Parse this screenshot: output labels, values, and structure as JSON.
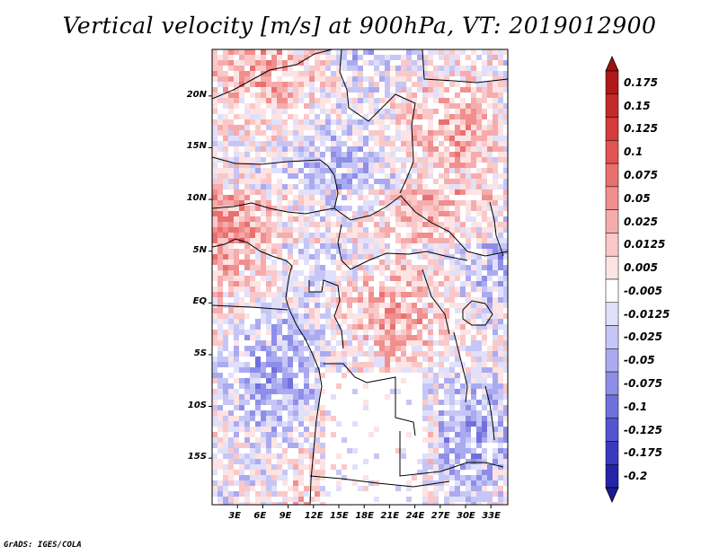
{
  "title": "Vertical velocity [m/s] at 900hPa, VT: 2019012900",
  "credit": "GrADS: IGES/COLA",
  "map": {
    "lat_range": [
      -19.5,
      24.5
    ],
    "lon_range": [
      0,
      35
    ],
    "lat_ticks": [
      {
        "value": 20,
        "label": "20N"
      },
      {
        "value": 15,
        "label": "15N"
      },
      {
        "value": 10,
        "label": "10N"
      },
      {
        "value": 5,
        "label": "5N"
      },
      {
        "value": 0,
        "label": "EQ"
      },
      {
        "value": -5,
        "label": "5S"
      },
      {
        "value": -10,
        "label": "10S"
      },
      {
        "value": -15,
        "label": "15S"
      }
    ],
    "lon_ticks": [
      {
        "value": 3,
        "label": "3E"
      },
      {
        "value": 6,
        "label": "6E"
      },
      {
        "value": 9,
        "label": "9E"
      },
      {
        "value": 12,
        "label": "12E"
      },
      {
        "value": 15,
        "label": "15E"
      },
      {
        "value": 18,
        "label": "18E"
      },
      {
        "value": 21,
        "label": "21E"
      },
      {
        "value": 24,
        "label": "24E"
      },
      {
        "value": 27,
        "label": "27E"
      },
      {
        "value": 30,
        "label": "30E"
      },
      {
        "value": 33,
        "label": "33E"
      }
    ]
  },
  "colorbar": {
    "levels": [
      {
        "label": "0.175",
        "color": "#b01818"
      },
      {
        "label": "0.15",
        "color": "#c52a2a"
      },
      {
        "label": "0.125",
        "color": "#d63a3a"
      },
      {
        "label": "0.1",
        "color": "#e25353"
      },
      {
        "label": "0.075",
        "color": "#ea7070"
      },
      {
        "label": "0.05",
        "color": "#f18e8e"
      },
      {
        "label": "0.025",
        "color": "#f6acac"
      },
      {
        "label": "0.0125",
        "color": "#fac8c8"
      },
      {
        "label": "0.005",
        "color": "#fde3e3"
      },
      {
        "label": "-0.005",
        "color": "#ffffff"
      },
      {
        "label": "-0.0125",
        "color": "#e0e0fb"
      },
      {
        "label": "-0.025",
        "color": "#c6c6f6"
      },
      {
        "label": "-0.05",
        "color": "#aaaaf0"
      },
      {
        "label": "-0.075",
        "color": "#8e8ee8"
      },
      {
        "label": "-0.1",
        "color": "#7070dd"
      },
      {
        "label": "-0.125",
        "color": "#5454d0"
      },
      {
        "label": "-0.175",
        "color": "#3a3ac0"
      },
      {
        "label": "-0.2",
        "color": "#2424a8"
      }
    ],
    "top_color": "#a01010",
    "bottom_color": "#1a1a98"
  }
}
